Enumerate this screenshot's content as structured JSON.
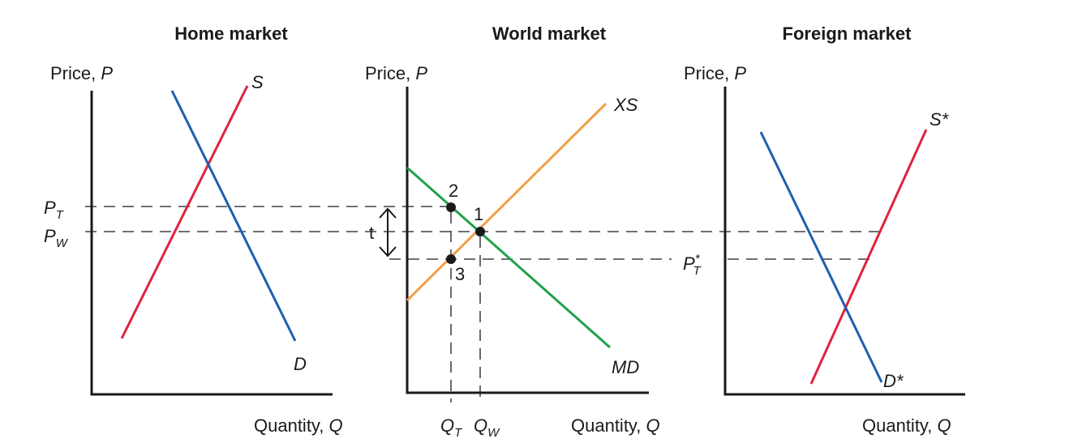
{
  "panels": {
    "home": {
      "title": "Home market",
      "y_axis_label": "Price,",
      "y_axis_var": "P",
      "x_axis_label": "Quantity,",
      "x_axis_var": "Q",
      "supply_label": "S",
      "demand_label": "D"
    },
    "world": {
      "title": "World market",
      "y_axis_label": "Price,",
      "y_axis_var": "P",
      "x_axis_label": "Quantity,",
      "x_axis_var": "Q",
      "export_supply_label": "XS",
      "import_demand_label": "MD"
    },
    "foreign": {
      "title": "Foreign market",
      "y_axis_label": "Price,",
      "y_axis_var": "P",
      "x_axis_label": "Quantity,",
      "x_axis_var": "Q",
      "supply_label": "S*",
      "demand_label": "D*"
    }
  },
  "price_levels": {
    "p_tariff": {
      "base": "P",
      "sub": "T"
    },
    "p_world": {
      "base": "P",
      "sub": "W"
    },
    "p_tariff_foreign": {
      "base": "P",
      "sub": "T",
      "sup": "*"
    }
  },
  "quantities": {
    "q_tariff": {
      "base": "Q",
      "sub": "T"
    },
    "q_world": {
      "base": "Q",
      "sub": "W"
    }
  },
  "points": {
    "p1": "1",
    "p2": "2",
    "p3": "3"
  },
  "tariff_label": "t",
  "colors": {
    "supply": "#e0233c",
    "demand": "#1f5fb0",
    "export_supply": "#f0a04a",
    "import_demand": "#1fa24a",
    "axis": "#1a1a1a"
  }
}
